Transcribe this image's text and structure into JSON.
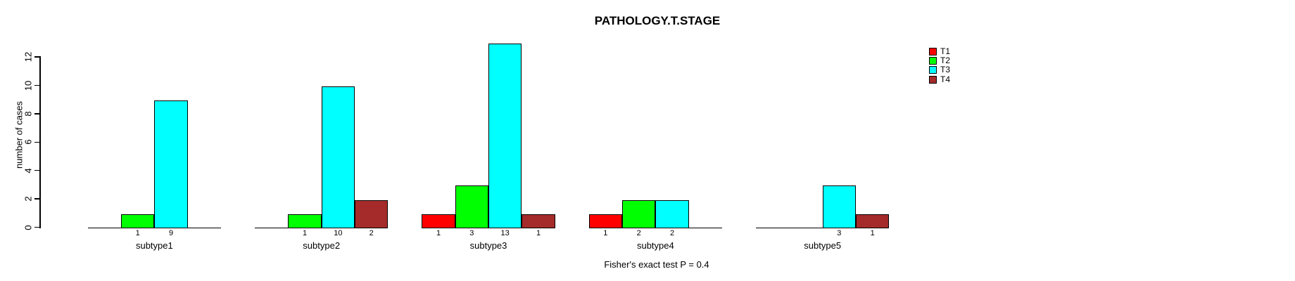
{
  "title": "PATHOLOGY.T.STAGE",
  "chart_data": {
    "type": "bar",
    "grouped": true,
    "title": "PATHOLOGY.T.STAGE",
    "xlabel": "",
    "ylabel": "number of cases",
    "categories": [
      "subtype1",
      "subtype2",
      "subtype3",
      "subtype4",
      "subtype5"
    ],
    "series": [
      {
        "name": "T1",
        "color": "#FF0000",
        "values": [
          0,
          0,
          1,
          1,
          0
        ]
      },
      {
        "name": "T2",
        "color": "#00FF00",
        "values": [
          1,
          1,
          3,
          2,
          0
        ]
      },
      {
        "name": "T3",
        "color": "#00FFFF",
        "values": [
          9,
          10,
          13,
          2,
          3
        ]
      },
      {
        "name": "T4",
        "color": "#A52A2A",
        "values": [
          0,
          2,
          1,
          0,
          1
        ]
      }
    ],
    "yticks": [
      0,
      2,
      4,
      6,
      8,
      10,
      12
    ],
    "ylim": [
      0,
      13
    ],
    "bar_value_labels_shown": true,
    "zero_bars_hidden": true,
    "grid": false,
    "legend_position": "right",
    "annotation": "Fisher's exact test P = 0.4"
  }
}
